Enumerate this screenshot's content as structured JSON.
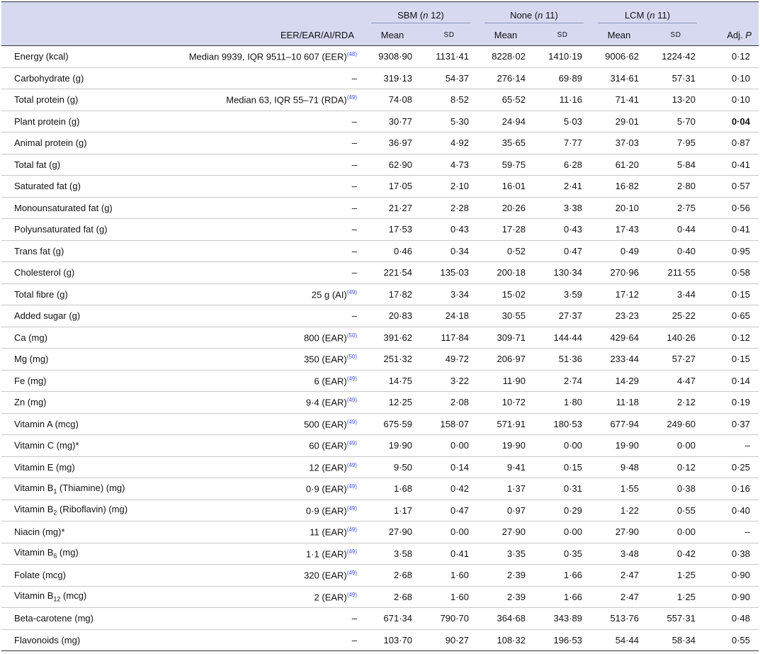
{
  "header": {
    "ref_label": "EER/EAR/AI/RDA",
    "groups": [
      {
        "name": "SBM",
        "n": "n 12"
      },
      {
        "name": "None",
        "n": "n 11"
      },
      {
        "name": "LCM",
        "n": "n 11"
      }
    ],
    "mean_label": "Mean",
    "sd_label": "SD",
    "adj_label": "Adj. P"
  },
  "rows": [
    {
      "nutrient": "Energy (kcal)",
      "ref": "Median 9939, IQR 9511–10 607 (EER)",
      "cite": "(48)",
      "v": [
        "9308·90",
        "1131·41",
        "8228·02",
        "1410·19",
        "9006·62",
        "1224·42"
      ],
      "p": "0·12"
    },
    {
      "nutrient": "Carbohydrate (g)",
      "ref": "–",
      "cite": "",
      "v": [
        "319·13",
        "54·37",
        "276·14",
        "69·89",
        "314·61",
        "57·31"
      ],
      "p": "0·10"
    },
    {
      "nutrient": "Total protein (g)",
      "ref": "Median 63, IQR 55–71 (RDA)",
      "cite": "(49)",
      "v": [
        "74·08",
        "8·52",
        "65·52",
        "11·16",
        "71·41",
        "13·20"
      ],
      "p": "0·10"
    },
    {
      "nutrient": "Plant protein (g)",
      "ref": "–",
      "cite": "",
      "v": [
        "30·77",
        "5·30",
        "24·94",
        "5·03",
        "29·01",
        "5·70"
      ],
      "p": "0·04",
      "bold": true
    },
    {
      "nutrient": "Animal protein (g)",
      "ref": "–",
      "cite": "",
      "v": [
        "36·97",
        "4·92",
        "35·65",
        "7·77",
        "37·03",
        "7·95"
      ],
      "p": "0·87"
    },
    {
      "nutrient": "Total fat (g)",
      "ref": "–",
      "cite": "",
      "v": [
        "62·90",
        "4·73",
        "59·75",
        "6·28",
        "61·20",
        "5·84"
      ],
      "p": "0·41"
    },
    {
      "nutrient": "Saturated fat (g)",
      "ref": "–",
      "cite": "",
      "v": [
        "17·05",
        "2·10",
        "16·01",
        "2·41",
        "16·82",
        "2·80"
      ],
      "p": "0·57"
    },
    {
      "nutrient": "Monounsaturated fat (g)",
      "ref": "–",
      "cite": "",
      "v": [
        "21·27",
        "2·28",
        "20·26",
        "3·38",
        "20·10",
        "2·75"
      ],
      "p": "0·56"
    },
    {
      "nutrient": "Polyunsaturated fat (g)",
      "ref": "–",
      "cite": "",
      "v": [
        "17·53",
        "0·43",
        "17·28",
        "0·43",
        "17·43",
        "0·44"
      ],
      "p": "0·41"
    },
    {
      "nutrient": "Trans fat (g)",
      "ref": "–",
      "cite": "",
      "v": [
        "0·46",
        "0·34",
        "0·52",
        "0·47",
        "0·49",
        "0·40"
      ],
      "p": "0·95"
    },
    {
      "nutrient": "Cholesterol (g)",
      "ref": "–",
      "cite": "",
      "v": [
        "221·54",
        "135·03",
        "200·18",
        "130·34",
        "270·96",
        "211·55"
      ],
      "p": "0·58"
    },
    {
      "nutrient": "Total fibre (g)",
      "ref": "25 g (AI)",
      "cite": "(49)",
      "v": [
        "17·82",
        "3·34",
        "15·02",
        "3·59",
        "17·12",
        "3·44"
      ],
      "p": "0·15"
    },
    {
      "nutrient": "Added sugar (g)",
      "ref": "–",
      "cite": "",
      "v": [
        "20·83",
        "24·18",
        "30·55",
        "27·37",
        "23·23",
        "25·22"
      ],
      "p": "0·65"
    },
    {
      "nutrient": "Ca (mg)",
      "ref": "800 (EAR)",
      "cite": "(50)",
      "v": [
        "391·62",
        "117·84",
        "309·71",
        "144·44",
        "429·64",
        "140·26"
      ],
      "p": "0·12"
    },
    {
      "nutrient": "Mg (mg)",
      "ref": "350 (EAR)",
      "cite": "(50)",
      "v": [
        "251·32",
        "49·72",
        "206·97",
        "51·36",
        "233·44",
        "57·27"
      ],
      "p": "0·15"
    },
    {
      "nutrient": "Fe (mg)",
      "ref": "6 (EAR)",
      "cite": "(49)",
      "v": [
        "14·75",
        "3·22",
        "11·90",
        "2·74",
        "14·29",
        "4·47"
      ],
      "p": "0·14"
    },
    {
      "nutrient": "Zn (mg)",
      "ref": "9·4 (EAR)",
      "cite": "(49)",
      "v": [
        "12·25",
        "2·08",
        "10·72",
        "1·80",
        "11·18",
        "2·12"
      ],
      "p": "0·19"
    },
    {
      "nutrient": "Vitamin A (mcg)",
      "ref": "500 (EAR)",
      "cite": "(49)",
      "v": [
        "675·59",
        "158·07",
        "571·91",
        "180·53",
        "677·94",
        "249·60"
      ],
      "p": "0·37"
    },
    {
      "nutrient": "Vitamin C (mg)*",
      "ref": "60 (EAR)",
      "cite": "(49)",
      "v": [
        "19·90",
        "0·00",
        "19·90",
        "0·00",
        "19·90",
        "0·00"
      ],
      "p": "–"
    },
    {
      "nutrient": "Vitamin E (mg)",
      "ref": "12 (EAR)",
      "cite": "(49)",
      "v": [
        "9·50",
        "0·14",
        "9·41",
        "0·15",
        "9·48",
        "0·12"
      ],
      "p": "0·25"
    },
    {
      "nutrient": "Vitamin B",
      "sub": "1",
      "suffix": " (Thiamine) (mg)",
      "ref": "0·9 (EAR)",
      "cite": "(49)",
      "v": [
        "1·68",
        "0·42",
        "1·37",
        "0·31",
        "1·55",
        "0·38"
      ],
      "p": "0·16"
    },
    {
      "nutrient": "Vitamin B",
      "sub": "2",
      "suffix": " (Riboflavin) (mg)",
      "ref": "0·9 (EAR)",
      "cite": "(49)",
      "v": [
        "1·17",
        "0·47",
        "0·97",
        "0·29",
        "1·22",
        "0·55"
      ],
      "p": "0·40"
    },
    {
      "nutrient": "Niacin (mg)*",
      "ref": "11 (EAR)",
      "cite": "(49)",
      "v": [
        "27·90",
        "0·00",
        "27·90",
        "0·00",
        "27·90",
        "0·00"
      ],
      "p": "–"
    },
    {
      "nutrient": "Vitamin B",
      "sub": "6",
      "suffix": " (mg)",
      "ref": "1·1 (EAR)",
      "cite": "(49)",
      "v": [
        "3·58",
        "0·41",
        "3·35",
        "0·35",
        "3·48",
        "0·42"
      ],
      "p": "0·38"
    },
    {
      "nutrient": "Folate (mcg)",
      "ref": "320 (EAR)",
      "cite": "(49)",
      "v": [
        "2·68",
        "1·60",
        "2·39",
        "1·66",
        "2·47",
        "1·25"
      ],
      "p": "0·90"
    },
    {
      "nutrient": "Vitamin B",
      "sub": "12",
      "suffix": " (mcg)",
      "ref": "2 (EAR)",
      "cite": "(49)",
      "v": [
        "2·68",
        "1·60",
        "2·39",
        "1·66",
        "2·47",
        "1·25"
      ],
      "p": "0·90"
    },
    {
      "nutrient": "Beta-carotene (mg)",
      "ref": "–",
      "cite": "",
      "v": [
        "671·34",
        "790·70",
        "364·68",
        "343·89",
        "513·76",
        "557·31"
      ],
      "p": "0·48"
    },
    {
      "nutrient": "Flavonoids (mg)",
      "ref": "–",
      "cite": "",
      "v": [
        "103·70",
        "90·27",
        "108·32",
        "196·53",
        "54·44",
        "58·34"
      ],
      "p": "0·55"
    }
  ]
}
